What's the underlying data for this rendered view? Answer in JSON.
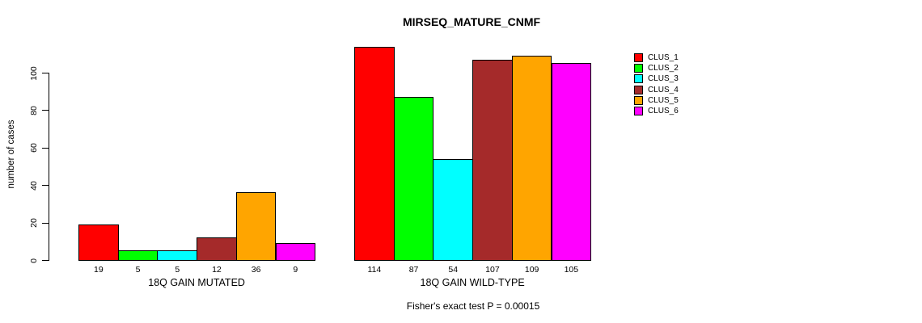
{
  "chart_data": {
    "type": "bar",
    "title": "MIRSEQ_MATURE_CNMF",
    "ylabel": "number of cases",
    "yticks": [
      0,
      20,
      40,
      60,
      80,
      100
    ],
    "ylim": [
      0,
      115
    ],
    "grid": false,
    "legend_position": "right",
    "series": [
      {
        "name": "CLUS_1",
        "color": "#FF0000"
      },
      {
        "name": "CLUS_2",
        "color": "#00FF00"
      },
      {
        "name": "CLUS_3",
        "color": "#00FFFF"
      },
      {
        "name": "CLUS_4",
        "color": "#A52A2A"
      },
      {
        "name": "CLUS_5",
        "color": "#FFA500"
      },
      {
        "name": "CLUS_6",
        "color": "#FF00FF"
      }
    ],
    "groups": [
      {
        "label": "18Q GAIN MUTATED",
        "values": [
          19,
          5,
          5,
          12,
          36,
          9
        ]
      },
      {
        "label": "18Q GAIN WILD-TYPE",
        "values": [
          114,
          87,
          54,
          107,
          109,
          105
        ]
      }
    ],
    "bar_value_labels": true,
    "annotation": "Fisher's exact test P = 0.00015"
  }
}
